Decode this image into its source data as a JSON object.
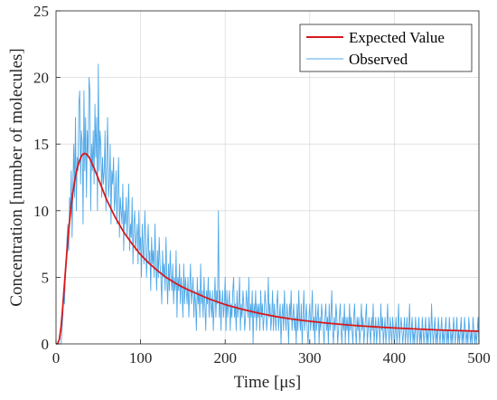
{
  "chart_data": {
    "type": "line",
    "title": "",
    "xlabel": "Time [μs]",
    "ylabel": "Concentration [number of molecules]",
    "xlim": [
      0,
      500
    ],
    "ylim": [
      0,
      25
    ],
    "xticks": [
      0,
      100,
      200,
      300,
      400,
      500
    ],
    "yticks": [
      0,
      5,
      10,
      15,
      20,
      25
    ],
    "grid": true,
    "legend_position": "top-right",
    "series": [
      {
        "name": "Expected Value",
        "style": "line",
        "color": "#d7191c",
        "x": [
          0,
          2,
          4,
          6,
          8,
          10,
          12,
          14,
          16,
          18,
          20,
          22,
          24,
          26,
          28,
          30,
          32,
          34,
          36,
          38,
          40,
          45,
          50,
          55,
          60,
          70,
          80,
          90,
          100,
          110,
          120,
          130,
          140,
          150,
          160,
          180,
          200,
          220,
          240,
          260,
          280,
          300,
          320,
          340,
          360,
          380,
          400,
          420,
          440,
          460,
          480,
          500
        ],
        "y": [
          0,
          0.02,
          0.35,
          1.3,
          2.8,
          4.5,
          6.2,
          7.8,
          9.2,
          10.4,
          11.4,
          12.2,
          12.9,
          13.4,
          13.8,
          14.1,
          14.25,
          14.3,
          14.25,
          14.1,
          13.9,
          13.2,
          12.4,
          11.6,
          10.8,
          9.5,
          8.4,
          7.5,
          6.7,
          6.05,
          5.5,
          5.0,
          4.6,
          4.25,
          3.95,
          3.4,
          2.95,
          2.6,
          2.3,
          2.05,
          1.85,
          1.7,
          1.56,
          1.45,
          1.35,
          1.27,
          1.2,
          1.14,
          1.08,
          1.03,
          0.99,
          0.95
        ]
      },
      {
        "name": "Observed",
        "style": "line",
        "color": "#4fa8e8",
        "x": [
          0,
          1,
          2,
          3,
          4,
          5,
          6,
          7,
          8,
          9,
          10,
          11,
          12,
          13,
          14,
          15,
          16,
          17,
          18,
          19,
          20,
          21,
          22,
          23,
          24,
          25,
          26,
          27,
          28,
          29,
          30,
          31,
          32,
          33,
          34,
          35,
          36,
          37,
          38,
          39,
          40,
          41,
          42,
          43,
          44,
          45,
          46,
          47,
          48,
          49,
          50,
          51,
          52,
          53,
          54,
          55,
          56,
          57,
          58,
          59,
          60,
          61,
          62,
          63,
          64,
          65,
          66,
          67,
          68,
          69,
          70,
          71,
          72,
          73,
          74,
          75,
          76,
          77,
          78,
          79,
          80,
          81,
          82,
          83,
          84,
          85,
          86,
          87,
          88,
          89,
          90,
          91,
          92,
          93,
          94,
          95,
          96,
          97,
          98,
          99,
          100,
          101,
          102,
          103,
          104,
          105,
          106,
          107,
          108,
          109,
          110,
          111,
          112,
          113,
          114,
          115,
          116,
          117,
          118,
          119,
          120,
          121,
          122,
          123,
          124,
          125,
          126,
          127,
          128,
          129,
          130,
          131,
          132,
          133,
          134,
          135,
          136,
          137,
          138,
          139,
          140,
          141,
          142,
          143,
          144,
          145,
          146,
          147,
          148,
          149,
          150,
          151,
          152,
          153,
          154,
          155,
          156,
          157,
          158,
          159,
          160,
          161,
          162,
          163,
          164,
          165,
          166,
          167,
          168,
          169,
          170,
          171,
          172,
          173,
          174,
          175,
          176,
          177,
          178,
          179,
          180,
          181,
          182,
          183,
          184,
          185,
          186,
          187,
          188,
          189,
          190,
          191,
          192,
          193,
          194,
          195,
          196,
          197,
          198,
          199,
          200,
          201,
          202,
          203,
          204,
          205,
          206,
          207,
          208,
          209,
          210,
          211,
          212,
          213,
          214,
          215,
          216,
          217,
          218,
          219,
          220,
          221,
          222,
          223,
          224,
          225,
          226,
          227,
          228,
          229,
          230,
          231,
          232,
          233,
          234,
          235,
          236,
          237,
          238,
          239,
          240,
          241,
          242,
          243,
          244,
          245,
          246,
          247,
          248,
          249,
          250,
          251,
          252,
          253,
          254,
          255,
          256,
          257,
          258,
          259,
          260,
          261,
          262,
          263,
          264,
          265,
          266,
          267,
          268,
          269,
          270,
          271,
          272,
          273,
          274,
          275,
          276,
          277,
          278,
          279,
          280,
          281,
          282,
          283,
          284,
          285,
          286,
          287,
          288,
          289,
          290,
          291,
          292,
          293,
          294,
          295,
          296,
          297,
          298,
          299,
          300,
          301,
          302,
          303,
          304,
          305,
          306,
          307,
          308,
          309,
          310,
          311,
          312,
          313,
          314,
          315,
          316,
          317,
          318,
          319,
          320,
          321,
          322,
          323,
          324,
          325,
          326,
          327,
          328,
          329,
          330,
          331,
          332,
          333,
          334,
          335,
          336,
          337,
          338,
          339,
          340,
          341,
          342,
          343,
          344,
          345,
          346,
          347,
          348,
          349,
          350,
          351,
          352,
          353,
          354,
          355,
          356,
          357,
          358,
          359,
          360,
          361,
          362,
          363,
          364,
          365,
          366,
          367,
          368,
          369,
          370,
          371,
          372,
          373,
          374,
          375,
          376,
          377,
          378,
          379,
          380,
          381,
          382,
          383,
          384,
          385,
          386,
          387,
          388,
          389,
          390,
          391,
          392,
          393,
          394,
          395,
          396,
          397,
          398,
          399,
          400,
          401,
          402,
          403,
          404,
          405,
          406,
          407,
          408,
          409,
          410,
          411,
          412,
          413,
          414,
          415,
          416,
          417,
          418,
          419,
          420,
          421,
          422,
          423,
          424,
          425,
          426,
          427,
          428,
          429,
          430,
          431,
          432,
          433,
          434,
          435,
          436,
          437,
          438,
          439,
          440,
          441,
          442,
          443,
          444,
          445,
          446,
          447,
          448,
          449,
          450,
          451,
          452,
          453,
          454,
          455,
          456,
          457,
          458,
          459,
          460,
          461,
          462,
          463,
          464,
          465,
          466,
          467,
          468,
          469,
          470,
          471,
          472,
          473,
          474,
          475,
          476,
          477,
          478,
          479,
          480,
          481,
          482,
          483,
          484,
          485,
          486,
          487,
          488,
          489,
          490,
          491,
          492,
          493,
          494,
          495,
          496,
          497,
          498,
          499,
          500
        ],
        "y": [
          0,
          0,
          0,
          0,
          0,
          0,
          0,
          1,
          2,
          4,
          3,
          5,
          6,
          8,
          9,
          7,
          11,
          10,
          13,
          8,
          12,
          15,
          11,
          17,
          10,
          14,
          13,
          18,
          19,
          12,
          16,
          15,
          9,
          19,
          13,
          17,
          11,
          16,
          14,
          20,
          19,
          10,
          15,
          13,
          16,
          12,
          18,
          14,
          17,
          10,
          21,
          13,
          16,
          15,
          11,
          14,
          12,
          13,
          16,
          10,
          14,
          17,
          11,
          12,
          15,
          9,
          13,
          12,
          14,
          10,
          11,
          13,
          9,
          12,
          14,
          8,
          11,
          10,
          9,
          12,
          7,
          10,
          9,
          11,
          8,
          10,
          12,
          7,
          9,
          8,
          11,
          6,
          9,
          10,
          7,
          8,
          9,
          6,
          10,
          7,
          8,
          5,
          9,
          7,
          6,
          10,
          8,
          5,
          7,
          9,
          6,
          7,
          4,
          8,
          6,
          7,
          5,
          9,
          6,
          4,
          7,
          5,
          8,
          6,
          5,
          3,
          7,
          5,
          6,
          4,
          8,
          5,
          3,
          6,
          4,
          7,
          5,
          4,
          6,
          3,
          5,
          4,
          7,
          2,
          5,
          4,
          6,
          3,
          5,
          4,
          2,
          6,
          3,
          5,
          4,
          3,
          5,
          2,
          4,
          6,
          3,
          4,
          5,
          2,
          4,
          3,
          1,
          5,
          3,
          4,
          2,
          6,
          3,
          4,
          2,
          5,
          3,
          1,
          4,
          3,
          5,
          2,
          4,
          3,
          2,
          4,
          1,
          3,
          5,
          2,
          4,
          3,
          10,
          2,
          4,
          1,
          3,
          4,
          2,
          3,
          5,
          1,
          4,
          2,
          3,
          4,
          1,
          3,
          2,
          4,
          5,
          2,
          3,
          1,
          4,
          2,
          3,
          5,
          1,
          3,
          2,
          4,
          3,
          1,
          2,
          4,
          3,
          2,
          5,
          1,
          3,
          2,
          4,
          0,
          3,
          2,
          4,
          1,
          3,
          2,
          3,
          1,
          4,
          2,
          3,
          1,
          2,
          4,
          3,
          1,
          2,
          5,
          2,
          3,
          1,
          2,
          4,
          1,
          3,
          2,
          1,
          3,
          4,
          1,
          2,
          3,
          0,
          2,
          3,
          1,
          4,
          2,
          1,
          3,
          2,
          0,
          3,
          2,
          4,
          1,
          2,
          3,
          1,
          2,
          0,
          3,
          1,
          4,
          2,
          1,
          3,
          0,
          2,
          4,
          1,
          2,
          3,
          1,
          0,
          2,
          3,
          1,
          2,
          4,
          1,
          2,
          0,
          3,
          1,
          2,
          3,
          0,
          2,
          1,
          3,
          2,
          1,
          0,
          2,
          3,
          1,
          2,
          0,
          3,
          1,
          2,
          4,
          1,
          0,
          2,
          1,
          3,
          2,
          0,
          1,
          2,
          3,
          1,
          0,
          2,
          1,
          3,
          0,
          2,
          1,
          2,
          0,
          3,
          1,
          2,
          1,
          0,
          2,
          3,
          1,
          0,
          2,
          1,
          2,
          0,
          1,
          3,
          1,
          2,
          0,
          1,
          2,
          3,
          0,
          1,
          2,
          1,
          0,
          2,
          1,
          3,
          0,
          1,
          2,
          0,
          1,
          2,
          1,
          0,
          3,
          1,
          2,
          0,
          1,
          2,
          0,
          1,
          3,
          1,
          0,
          2,
          1,
          0,
          2,
          1,
          0,
          1,
          2,
          0,
          1,
          3,
          0,
          1,
          2,
          1,
          0,
          1,
          2,
          0,
          1,
          2,
          0,
          1,
          3,
          0,
          1,
          2,
          0,
          1,
          0,
          2,
          1,
          0,
          1,
          2,
          0,
          1,
          0,
          2,
          1,
          0,
          1,
          2,
          0,
          1,
          0,
          2,
          1,
          0,
          3,
          1,
          0,
          1,
          2,
          0,
          1,
          0,
          2,
          1,
          0,
          1,
          2,
          0,
          1,
          0,
          1,
          2,
          0,
          1,
          0,
          2,
          1,
          0,
          1,
          0,
          2,
          1,
          0,
          1,
          2,
          0,
          1,
          0,
          1,
          2,
          0,
          1,
          0,
          2,
          1,
          0,
          1,
          0,
          2,
          1,
          0,
          1,
          0,
          2,
          1,
          0,
          1,
          0,
          1,
          2,
          0
        ]
      }
    ]
  }
}
